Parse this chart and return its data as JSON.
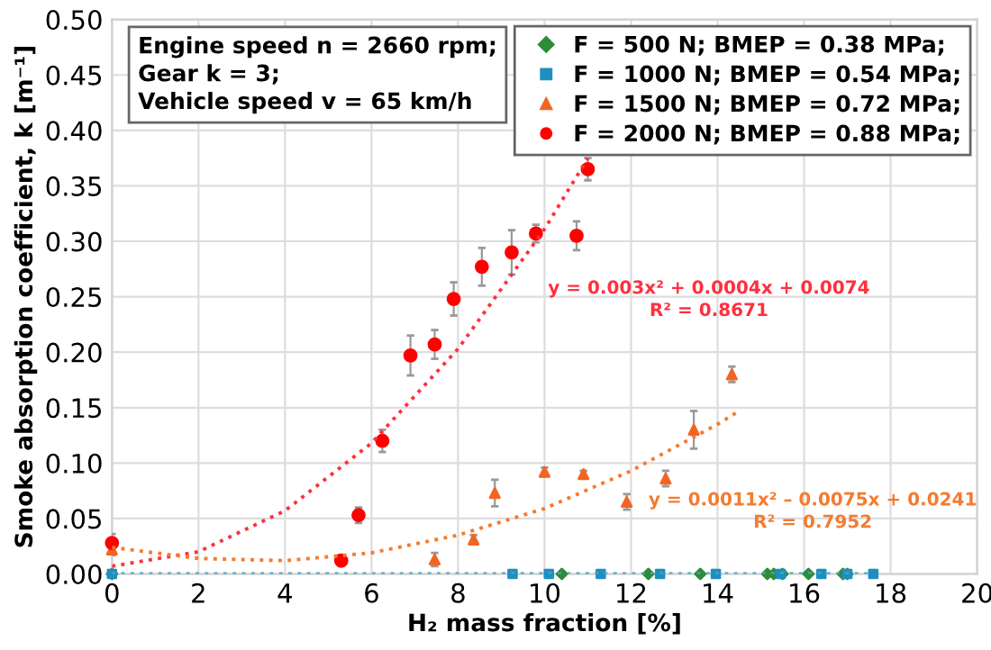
{
  "chart_data": {
    "type": "scatter",
    "xlabel": "H₂ mass fraction [%]",
    "ylabel": "Smoke absorption coefficient, k [m⁻¹]",
    "xlim": [
      0,
      20
    ],
    "xticks": [
      0,
      2,
      4,
      6,
      8,
      10,
      12,
      14,
      16,
      18,
      20
    ],
    "ylim": [
      0,
      0.5
    ],
    "yticks": [
      {
        "value": 0,
        "label": "0.00"
      },
      {
        "value": 0.05,
        "label": "0.05"
      },
      {
        "value": 0.1,
        "label": "0.10"
      },
      {
        "value": 0.15,
        "label": "0.15"
      },
      {
        "value": 0.2,
        "label": "0.20"
      },
      {
        "value": 0.25,
        "label": "0.25"
      },
      {
        "value": 0.3,
        "label": "0.30"
      },
      {
        "value": 0.35,
        "label": "0.35"
      },
      {
        "value": 0.4,
        "label": "0.40"
      },
      {
        "value": 0.45,
        "label": "0.45"
      },
      {
        "value": 0.5,
        "label": "0.50"
      }
    ],
    "grid": true,
    "legend": "top right",
    "series": [
      {
        "type": "line",
        "color": "#4aa8c8",
        "line_style": "dotted",
        "marker": "none",
        "x": [
          0,
          17.6
        ],
        "values": [
          0,
          0
        ]
      },
      {
        "type": "line",
        "color": "#ff3040",
        "line_style": "dotted",
        "marker": "none",
        "x": [
          0,
          2,
          4,
          6,
          8,
          10,
          11
        ],
        "values": [
          0.007,
          0.02,
          0.057,
          0.118,
          0.203,
          0.311,
          0.375
        ]
      },
      {
        "type": "line",
        "color": "#f47b30",
        "line_style": "dotted",
        "marker": "none",
        "x": [
          0,
          2,
          4,
          6,
          8,
          10,
          12,
          14,
          14.5
        ],
        "values": [
          0.024,
          0.014,
          0.012,
          0.019,
          0.035,
          0.059,
          0.093,
          0.135,
          0.147
        ]
      },
      {
        "name": "F = 500 N; BMEP = 0.38 MPa;",
        "color": "#2e8b3a",
        "marker": "diamond",
        "x": [
          0,
          10.4,
          12.4,
          13.6,
          15.15,
          15.3,
          15.5,
          16.1,
          16.9,
          17.0
        ],
        "values": [
          0,
          0,
          0,
          0,
          0,
          0,
          0,
          0,
          0,
          0
        ]
      },
      {
        "name": "F = 1000 N; BMEP = 0.54 MPa;",
        "color": "#1f8fbf",
        "marker": "square",
        "x": [
          0,
          9.26,
          10.1,
          11.3,
          12.67,
          13.96,
          15.46,
          16.4,
          17.0,
          17.6
        ],
        "values": [
          0,
          0,
          0,
          0,
          0,
          0,
          0,
          0,
          0,
          0
        ]
      },
      {
        "name": "F = 1500 N; BMEP = 0.72 MPa;",
        "color": "#f26522",
        "marker": "triangle",
        "x": [
          0,
          7.46,
          8.36,
          8.85,
          10.0,
          10.9,
          11.9,
          12.8,
          13.45,
          14.33
        ],
        "values": [
          0.022,
          0.013,
          0.031,
          0.073,
          0.092,
          0.09,
          0.065,
          0.086,
          0.13,
          0.18
        ],
        "errors": [
          0.005,
          0.006,
          0.004,
          0.012,
          0.004,
          0.003,
          0.007,
          0.007,
          0.017,
          0.007
        ]
      },
      {
        "name": "F = 2000 N; BMEP = 0.88 MPa;",
        "color": "#ff0000",
        "marker": "circle",
        "x": [
          0,
          5.3,
          5.7,
          6.25,
          6.9,
          7.46,
          7.9,
          8.55,
          9.24,
          9.8,
          10.74,
          11.0
        ],
        "values": [
          0.028,
          0.012,
          0.053,
          0.12,
          0.197,
          0.207,
          0.248,
          0.277,
          0.29,
          0.307,
          0.305,
          0.365
        ],
        "errors": [
          0.008,
          0.005,
          0.007,
          0.01,
          0.018,
          0.013,
          0.015,
          0.017,
          0.02,
          0.008,
          0.013,
          0.01
        ]
      }
    ],
    "annotations": [
      "Engine speed n = 2660 rpm;\nGear k = 3;\nVehicle speed v = 65 km/h",
      "y = 0.003x² + 0.0004x + 0.0074\nR² = 0.8671",
      "y = 0.0011x² – 0.0075x + 0.0241\nR² = 0.7952"
    ]
  }
}
